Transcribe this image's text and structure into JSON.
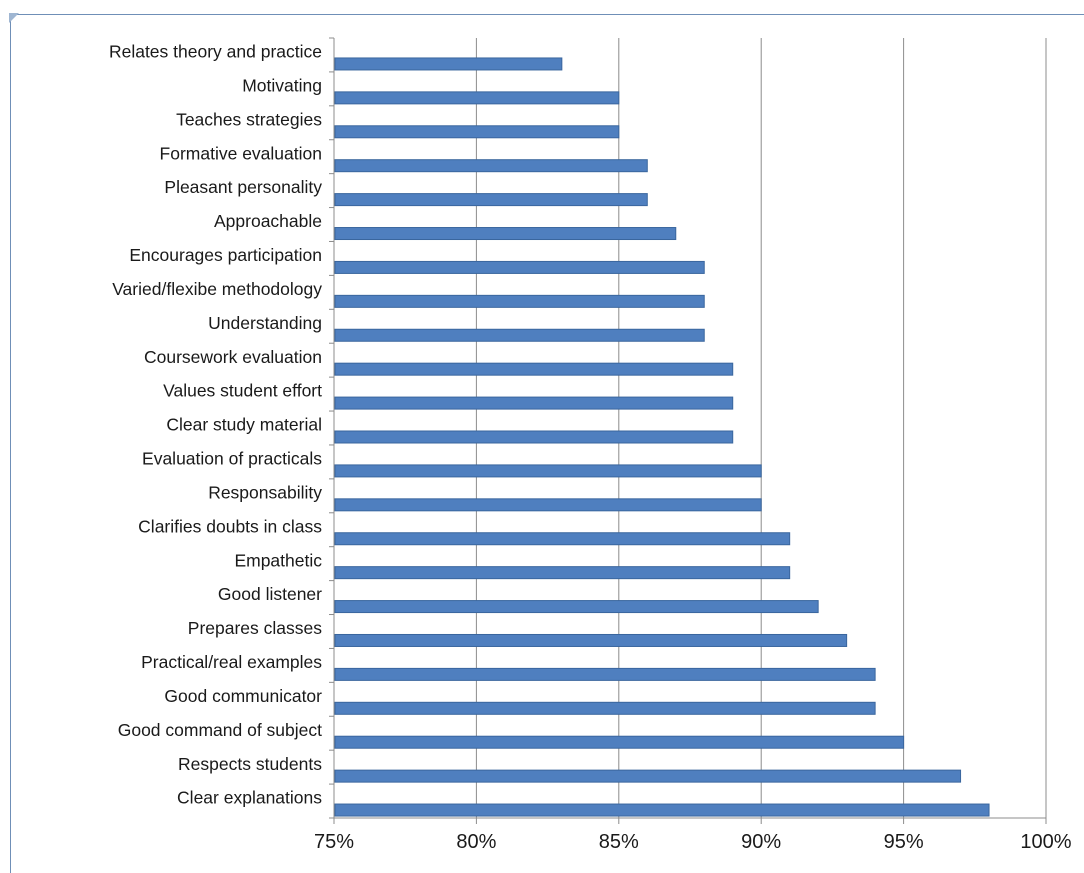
{
  "caption": "",
  "chart_data": {
    "type": "bar",
    "orientation": "horizontal",
    "title": "",
    "xlabel": "",
    "ylabel": "",
    "categories": [
      "Relates theory and practice",
      "Motivating",
      "Teaches strategies",
      "Formative evaluation",
      "Pleasant personality",
      "Approachable",
      "Encourages participation",
      "Varied/flexibe methodology",
      "Understanding",
      "Coursework evaluation",
      "Values student effort",
      "Clear study material",
      "Evaluation of practicals",
      "Responsability",
      "Clarifies doubts in class",
      "Empathetic",
      "Good listener",
      "Prepares classes",
      "Practical/real examples",
      "Good communicator",
      "Good command of subject",
      "Respects students",
      "Clear explanations"
    ],
    "values": [
      83,
      85,
      85,
      86,
      86,
      87,
      88,
      88,
      88,
      89,
      89,
      89,
      90,
      90,
      91,
      91,
      92,
      93,
      94,
      94,
      95,
      97,
      98
    ],
    "xlim": [
      75,
      100
    ],
    "xticks": [
      75,
      80,
      85,
      90,
      95,
      100
    ],
    "xtick_labels": [
      "75%",
      "80%",
      "85%",
      "90%",
      "95%",
      "100%"
    ],
    "grid": "vertical",
    "legend": "none",
    "bar_color": "#4f7fbf",
    "bar_edge_color": "#3a669e"
  }
}
